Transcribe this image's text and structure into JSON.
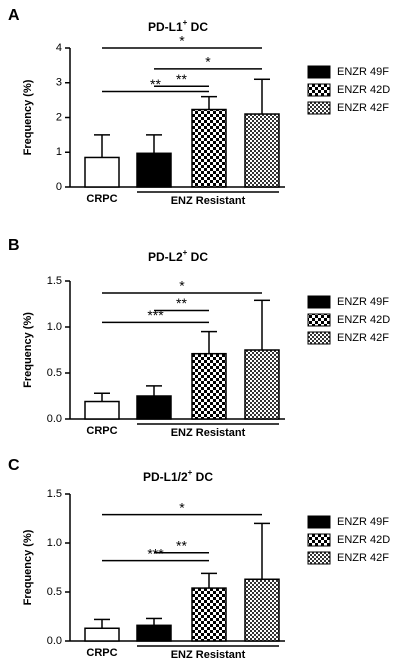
{
  "chart_data": [
    {
      "type": "bar",
      "panel": "A",
      "title": [
        "PD-L1",
        "+",
        " DC"
      ],
      "ylabel": "Frequency (%)",
      "categories": [
        "CRPC",
        "ENZR 49F",
        "ENZR 42D",
        "ENZR 42F"
      ],
      "group_label": "ENZ Resistant",
      "values": [
        0.85,
        0.97,
        2.23,
        2.1
      ],
      "errors": [
        0.65,
        0.53,
        0.37,
        1.0
      ],
      "fills": [
        "white",
        "black",
        "checker",
        "fine-checker"
      ],
      "ylim": [
        0,
        4
      ],
      "yticks": [
        0,
        1,
        2,
        3,
        4
      ],
      "annotations": [
        {
          "label": "*",
          "from": 0,
          "to": 3,
          "y": 4.0
        },
        {
          "label": "*",
          "from": 1,
          "to": 3,
          "y": 3.4
        },
        {
          "label": "**",
          "from": 1,
          "to": 2,
          "y": 2.9
        },
        {
          "label": "**",
          "from": 0,
          "to": 2,
          "y": 2.75
        }
      ]
    },
    {
      "type": "bar",
      "panel": "B",
      "title": [
        "PD-L2",
        "+",
        " DC"
      ],
      "ylabel": "Frequency (%)",
      "categories": [
        "CRPC",
        "ENZR 49F",
        "ENZR 42D",
        "ENZR 42F"
      ],
      "group_label": "ENZ Resistant",
      "values": [
        0.19,
        0.25,
        0.71,
        0.75
      ],
      "errors": [
        0.09,
        0.11,
        0.24,
        0.54
      ],
      "fills": [
        "white",
        "black",
        "checker",
        "fine-checker"
      ],
      "ylim": [
        0,
        1.5
      ],
      "yticks": [
        {
          "value": 0,
          "label": "0.0"
        },
        0.5,
        {
          "value": 1,
          "label": "1.0"
        },
        1.5
      ],
      "annotations": [
        {
          "label": "*",
          "from": 0,
          "to": 3,
          "y": 1.37
        },
        {
          "label": "**",
          "from": 1,
          "to": 2,
          "y": 1.18
        },
        {
          "label": "***",
          "from": 0,
          "to": 2,
          "y": 1.05
        }
      ]
    },
    {
      "type": "bar",
      "panel": "C",
      "title": [
        "PD-L1/2",
        "+",
        " DC"
      ],
      "ylabel": "Frequency (%)",
      "categories": [
        "CRPC",
        "ENZR 49F",
        "ENZR 42D",
        "ENZR 42F"
      ],
      "group_label": "ENZ Resistant",
      "values": [
        0.13,
        0.16,
        0.54,
        0.63
      ],
      "errors": [
        0.09,
        0.07,
        0.15,
        0.57
      ],
      "fills": [
        "white",
        "black",
        "checker",
        "fine-checker"
      ],
      "ylim": [
        0,
        1.5
      ],
      "yticks": [
        {
          "value": 0,
          "label": "0.0"
        },
        0.5,
        {
          "value": 1,
          "label": "1.0"
        },
        1.5
      ],
      "annotations": [
        {
          "label": "*",
          "from": 0,
          "to": 3,
          "y": 1.29
        },
        {
          "label": "**",
          "from": 1,
          "to": 2,
          "y": 0.9
        },
        {
          "label": "***",
          "from": 0,
          "to": 2,
          "y": 0.82
        }
      ]
    }
  ]
}
